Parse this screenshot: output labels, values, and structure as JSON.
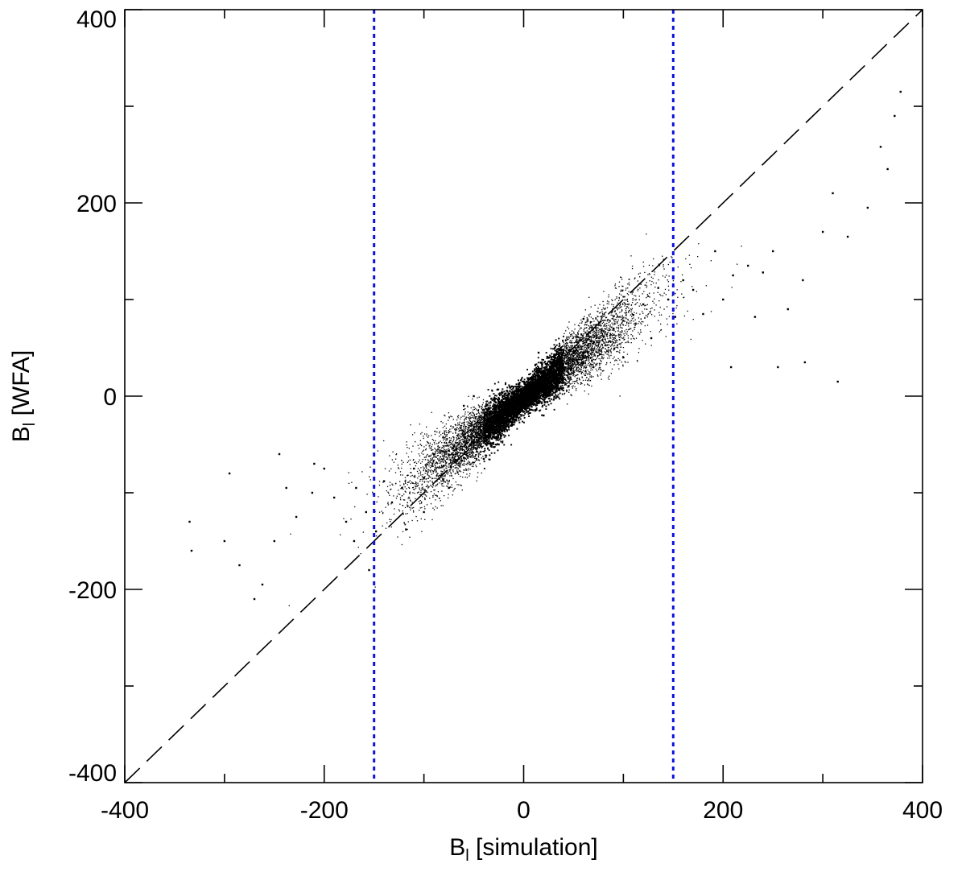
{
  "chart_data": {
    "type": "scatter",
    "title": "",
    "xlabel": {
      "base": "B",
      "subscript": "l",
      "rest": " [simulation]"
    },
    "ylabel": {
      "base": "B",
      "subscript": "l",
      "rest": " [WFA]"
    },
    "xlim": [
      -400,
      400
    ],
    "ylim": [
      -400,
      400
    ],
    "x_major_ticks": [
      -400,
      -200,
      0,
      200,
      400
    ],
    "y_major_ticks": [
      -400,
      -200,
      0,
      200,
      400
    ],
    "x_tick_labels": [
      "-400",
      "-200",
      "0",
      "200",
      "400"
    ],
    "y_tick_labels": [
      "-400",
      "-200",
      "0",
      "200",
      "400"
    ],
    "minor_tick_step": 100,
    "grid": false,
    "reference_lines": [
      {
        "kind": "identity",
        "from": [
          -400,
          -400
        ],
        "to": [
          400,
          400
        ],
        "color": "#000000",
        "style": "dashed"
      },
      {
        "kind": "vertical",
        "x": -150,
        "color": "#1010e0",
        "style": "dotted"
      },
      {
        "kind": "vertical",
        "x": 150,
        "color": "#1010e0",
        "style": "dotted"
      }
    ],
    "series": [
      {
        "marker_color": "#000000",
        "trend": {
          "slope": 0.8,
          "intercept": -2,
          "core_range": [
            -40,
            40
          ]
        },
        "points": [
          [
            -335,
            -130
          ],
          [
            -333,
            -160
          ],
          [
            -300,
            -150
          ],
          [
            -295,
            -80
          ],
          [
            -285,
            -175
          ],
          [
            -270,
            -210
          ],
          [
            -262,
            -195
          ],
          [
            -250,
            -150
          ],
          [
            -238,
            -95
          ],
          [
            -228,
            -125
          ],
          [
            -212,
            -100
          ],
          [
            -200,
            -75
          ],
          [
            -190,
            -105
          ],
          [
            -178,
            -130
          ],
          [
            -168,
            -95
          ],
          [
            -158,
            -120
          ],
          [
            -155,
            -180
          ],
          [
            -148,
            -140
          ],
          [
            -140,
            -88
          ],
          [
            -132,
            -110
          ],
          [
            -122,
            -95
          ],
          [
            -118,
            -138
          ],
          [
            -110,
            -75
          ],
          [
            -100,
            -85
          ],
          [
            -90,
            -60
          ],
          [
            -80,
            -72
          ],
          [
            -70,
            -52
          ],
          [
            -60,
            -40
          ],
          [
            -50,
            -35
          ],
          [
            -40,
            -30
          ],
          [
            -30,
            -20
          ],
          [
            -20,
            -15
          ],
          [
            -10,
            -8
          ],
          [
            0,
            0
          ],
          [
            10,
            10
          ],
          [
            20,
            14
          ],
          [
            30,
            24
          ],
          [
            40,
            30
          ],
          [
            50,
            36
          ],
          [
            60,
            45
          ],
          [
            70,
            55
          ],
          [
            80,
            62
          ],
          [
            90,
            70
          ],
          [
            100,
            78
          ],
          [
            110,
            84
          ],
          [
            120,
            95
          ],
          [
            128,
            60
          ],
          [
            135,
            112
          ],
          [
            145,
            100
          ],
          [
            152,
            82
          ],
          [
            160,
            120
          ],
          [
            170,
            110
          ],
          [
            180,
            85
          ],
          [
            192,
            150
          ],
          [
            200,
            100
          ],
          [
            210,
            125
          ],
          [
            225,
            135
          ],
          [
            240,
            128
          ],
          [
            250,
            150
          ],
          [
            265,
            90
          ],
          [
            280,
            120
          ],
          [
            300,
            170
          ],
          [
            310,
            210
          ],
          [
            325,
            165
          ],
          [
            345,
            195
          ],
          [
            358,
            258
          ],
          [
            365,
            235
          ],
          [
            372,
            290
          ],
          [
            378,
            315
          ],
          [
            208,
            30
          ],
          [
            232,
            82
          ],
          [
            255,
            30
          ],
          [
            282,
            35
          ],
          [
            315,
            15
          ],
          [
            150,
            50
          ],
          [
            -210,
            -70
          ],
          [
            -245,
            -60
          ],
          [
            -170,
            -150
          ],
          [
            -60,
            -10
          ],
          [
            -40,
            -65
          ],
          [
            -25,
            -50
          ],
          [
            20,
            -20
          ],
          [
            45,
            10
          ],
          [
            70,
            30
          ],
          [
            100,
            40
          ],
          [
            -100,
            -120
          ],
          [
            -75,
            -95
          ],
          [
            -50,
            0
          ],
          [
            15,
            45
          ],
          [
            60,
            80
          ]
        ]
      }
    ]
  }
}
